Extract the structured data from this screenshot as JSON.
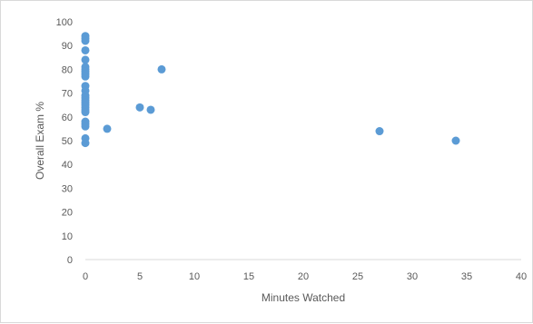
{
  "chart_data": {
    "type": "scatter",
    "title": "",
    "xlabel": "Minutes Watched",
    "ylabel": "Overall Exam %",
    "xlim": [
      0,
      40
    ],
    "ylim": [
      0,
      100
    ],
    "x_ticks": [
      "0",
      "5",
      "10",
      "15",
      "20",
      "25",
      "30",
      "35",
      "40"
    ],
    "y_ticks": [
      "0",
      "10",
      "20",
      "30",
      "40",
      "50",
      "60",
      "70",
      "80",
      "90",
      "100"
    ],
    "grid": "none",
    "legend": "none",
    "marker_color": "#5b9bd5",
    "points": [
      [
        0,
        94
      ],
      [
        0,
        93
      ],
      [
        0,
        92
      ],
      [
        0,
        88
      ],
      [
        0,
        84
      ],
      [
        0,
        81
      ],
      [
        0,
        80
      ],
      [
        0,
        79
      ],
      [
        0,
        78
      ],
      [
        0,
        77
      ],
      [
        0,
        73
      ],
      [
        0,
        71
      ],
      [
        0,
        69
      ],
      [
        0,
        68
      ],
      [
        0,
        67
      ],
      [
        0,
        66
      ],
      [
        0,
        65
      ],
      [
        0,
        64
      ],
      [
        0,
        63
      ],
      [
        0,
        62
      ],
      [
        0,
        58
      ],
      [
        0,
        57
      ],
      [
        0,
        56
      ],
      [
        0,
        51
      ],
      [
        0,
        49
      ],
      [
        2,
        55
      ],
      [
        5,
        64
      ],
      [
        6,
        63
      ],
      [
        7,
        80
      ],
      [
        27,
        54
      ],
      [
        34,
        50
      ]
    ]
  }
}
